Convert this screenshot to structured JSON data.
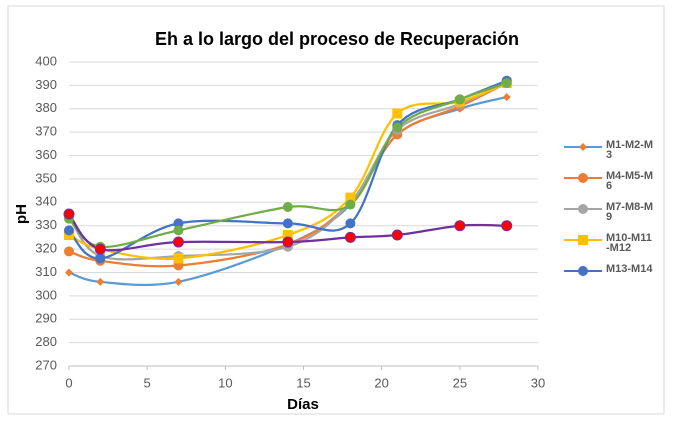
{
  "chart_data": {
    "type": "line",
    "title": "Eh a lo largo del proceso de Recuperación",
    "x_label": "Días",
    "y_label": "pH",
    "x": [
      0,
      2,
      7,
      14,
      18,
      21,
      25,
      28
    ],
    "xlim": [
      0,
      30
    ],
    "xticks": [
      0,
      5,
      10,
      15,
      20,
      25,
      30
    ],
    "ylim": [
      270,
      400
    ],
    "yticks": [
      270,
      280,
      290,
      300,
      310,
      320,
      330,
      340,
      350,
      360,
      370,
      380,
      390,
      400
    ],
    "grid": true,
    "legend": "right",
    "series": [
      {
        "name": "M1-M2-M3",
        "color": "#5b9bd5",
        "marker_color": "#ed7d31",
        "marker": "diamond",
        "values": [
          310,
          306,
          306,
          322,
          339,
          369,
          380,
          385
        ]
      },
      {
        "name": "M4-M5-M6",
        "color": "#ed7d31",
        "marker_color": "#ed7d31",
        "marker": "circle",
        "values": [
          319,
          315,
          313,
          322,
          340,
          369,
          381,
          391
        ]
      },
      {
        "name": "M7-M8-M9",
        "color": "#a5a5a5",
        "marker_color": "#a5a5a5",
        "marker": "circle",
        "values": [
          334,
          317,
          317,
          321,
          340,
          371,
          382,
          391
        ]
      },
      {
        "name": "M10-M11-M12",
        "color": "#ffc000",
        "marker_color": "#ffc000",
        "marker": "square",
        "values": [
          326,
          320,
          316,
          326,
          342,
          378,
          383,
          391
        ]
      },
      {
        "name": "M13-M14",
        "color": "#4472c4",
        "marker_color": "#4472c4",
        "marker": "circle",
        "values": [
          328,
          316,
          331,
          331,
          331,
          373,
          384,
          392
        ]
      },
      {
        "color": "#70ad47",
        "marker_color": "#70ad47",
        "marker": "circle",
        "values": [
          333,
          321,
          328,
          338,
          339,
          372,
          384,
          391
        ]
      },
      {
        "color": "#7030a0",
        "marker_color": "#ff0000",
        "marker": "circle",
        "values": [
          335,
          320,
          323,
          323,
          325,
          326,
          330,
          330
        ]
      }
    ]
  }
}
